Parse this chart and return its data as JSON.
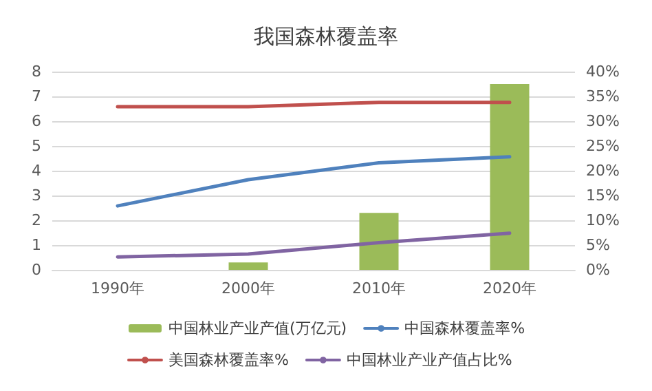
{
  "chart_data": {
    "type": "bar",
    "title": "我国森林覆盖率",
    "categories": [
      "1990年",
      "2000年",
      "2010年",
      "2020年"
    ],
    "series": [
      {
        "name": "中国林业产业产值(万亿元)",
        "color": "#9bbb59",
        "values": [
          null,
          0.3,
          2.3,
          7.5
        ]
      },
      {
        "name": "中国森林覆盖率%",
        "type": "line",
        "axis": "y2",
        "color": "#4f81bd",
        "values": [
          12.9,
          18.2,
          21.6,
          22.8
        ]
      },
      {
        "name": "美国森林覆盖率%",
        "type": "line",
        "axis": "y2",
        "color": "#c0504d",
        "values": [
          32.9,
          32.9,
          33.8,
          33.8
        ]
      },
      {
        "name": "中国林业产业产值占比%",
        "type": "line",
        "axis": "y2",
        "color": "#8064a2",
        "values": [
          2.6,
          3.2,
          5.5,
          7.4
        ]
      }
    ],
    "ylim": [
      0,
      8
    ],
    "yticks": [
      0,
      1,
      2,
      3,
      4,
      5,
      6,
      7,
      8
    ],
    "y2lim": [
      0,
      40
    ],
    "y2ticks": [
      {
        "value": 0,
        "label": "0%"
      },
      {
        "value": 5,
        "label": "5%"
      },
      {
        "value": 10,
        "label": "10%"
      },
      {
        "value": 15,
        "label": "15%"
      },
      {
        "value": 20,
        "label": "20%"
      },
      {
        "value": 25,
        "label": "25%"
      },
      {
        "value": 30,
        "label": "30%"
      },
      {
        "value": 35,
        "label": "35%"
      },
      {
        "value": 40,
        "label": "40%"
      }
    ],
    "grid": "y",
    "legend": "bottom",
    "marker": "none"
  }
}
